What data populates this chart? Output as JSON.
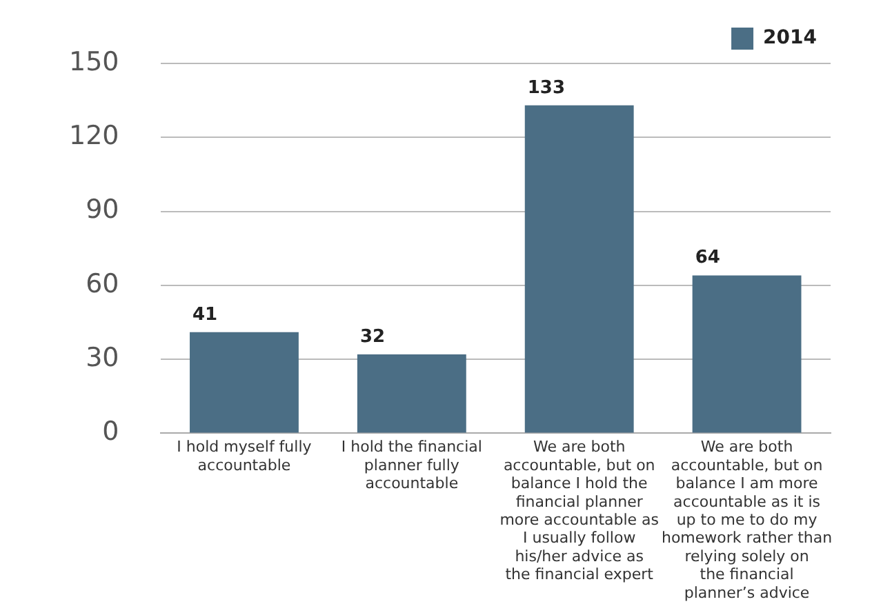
{
  "chart_data": {
    "type": "bar",
    "categories": [
      "I hold myself fully accountable",
      "I hold the financial planner fully accountable",
      "We are both accountable, but on balance I hold the financial planner more accountable as I usually follow his/her advice as the financial expert",
      "We are both accountable, but on balance I am more accountable as it is up to me to do my homework rather than relying solely on the financial planner’s advice"
    ],
    "series": [
      {
        "name": "2014",
        "color": "#4b6e85",
        "values": [
          41,
          32,
          133,
          64
        ]
      }
    ],
    "ylim": [
      0,
      150
    ],
    "yticks": [
      0,
      30,
      60,
      90,
      120,
      150
    ],
    "grid": "y",
    "legend": "top right",
    "data_labels": true
  }
}
